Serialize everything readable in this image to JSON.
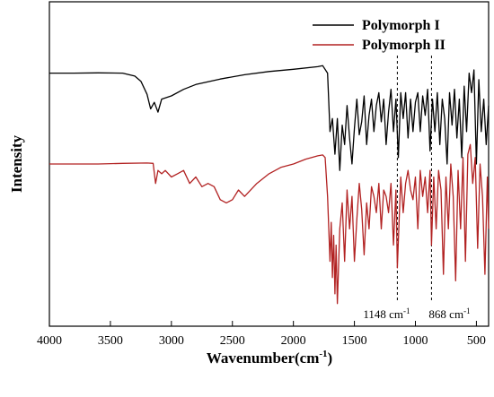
{
  "chart_data": {
    "type": "line",
    "title": "",
    "xlabel": "Wavenumber(cm",
    "xlabel_sup": "-1",
    "xlabel_close": ")",
    "ylabel": "Intensity",
    "xlim": [
      4000,
      400
    ],
    "x_reversed": true,
    "y_ticks_shown": false,
    "grid": false,
    "legend_position": "top-right",
    "x_ticks": [
      4000,
      3500,
      3000,
      2500,
      2000,
      1500,
      1000,
      500
    ],
    "x_tick_labels": [
      "4000",
      "3500",
      "3000",
      "2500",
      "2000",
      "1500",
      "1000",
      "500"
    ],
    "annotations": [
      {
        "x": 1148,
        "label": "1148 cm",
        "sup": "-1",
        "style": "dashed-vertical-line"
      },
      {
        "x": 868,
        "label": "868 cm",
        "sup": "-1",
        "style": "dashed-vertical-line"
      }
    ],
    "series": [
      {
        "name": "Polymorph I",
        "color": "#000000",
        "x": [
          4000,
          3800,
          3600,
          3400,
          3300,
          3250,
          3200,
          3170,
          3140,
          3110,
          3080,
          3000,
          2900,
          2800,
          2600,
          2400,
          2200,
          2000,
          1800,
          1760,
          1720,
          1700,
          1680,
          1660,
          1640,
          1620,
          1600,
          1580,
          1560,
          1540,
          1520,
          1500,
          1480,
          1460,
          1440,
          1420,
          1400,
          1380,
          1360,
          1340,
          1320,
          1300,
          1280,
          1260,
          1240,
          1220,
          1200,
          1180,
          1160,
          1140,
          1120,
          1100,
          1080,
          1060,
          1040,
          1020,
          1000,
          980,
          960,
          940,
          920,
          900,
          880,
          860,
          840,
          820,
          800,
          780,
          760,
          740,
          720,
          700,
          680,
          660,
          640,
          620,
          600,
          580,
          560,
          540,
          520,
          500,
          480,
          460,
          440,
          420,
          400
        ],
        "y": [
          0.78,
          0.78,
          0.781,
          0.78,
          0.771,
          0.755,
          0.715,
          0.67,
          0.69,
          0.66,
          0.7,
          0.71,
          0.73,
          0.745,
          0.762,
          0.775,
          0.785,
          0.792,
          0.8,
          0.803,
          0.78,
          0.6,
          0.64,
          0.53,
          0.64,
          0.48,
          0.62,
          0.56,
          0.68,
          0.58,
          0.5,
          0.61,
          0.7,
          0.59,
          0.63,
          0.71,
          0.56,
          0.65,
          0.7,
          0.6,
          0.68,
          0.72,
          0.63,
          0.7,
          0.56,
          0.66,
          0.73,
          0.6,
          0.7,
          0.52,
          0.72,
          0.64,
          0.72,
          0.58,
          0.7,
          0.6,
          0.69,
          0.72,
          0.6,
          0.71,
          0.65,
          0.73,
          0.54,
          0.7,
          0.6,
          0.72,
          0.56,
          0.7,
          0.64,
          0.5,
          0.72,
          0.62,
          0.73,
          0.58,
          0.7,
          0.52,
          0.74,
          0.6,
          0.78,
          0.72,
          0.79,
          0.5,
          0.76,
          0.6,
          0.7,
          0.56,
          0.68
        ]
      },
      {
        "name": "Polymorph II",
        "color": "#b22222",
        "x": [
          4000,
          3800,
          3600,
          3400,
          3200,
          3150,
          3130,
          3110,
          3080,
          3050,
          3000,
          2950,
          2900,
          2850,
          2800,
          2750,
          2700,
          2650,
          2600,
          2550,
          2500,
          2450,
          2400,
          2300,
          2200,
          2100,
          2000,
          1900,
          1800,
          1760,
          1740,
          1720,
          1700,
          1690,
          1680,
          1670,
          1660,
          1650,
          1640,
          1620,
          1600,
          1580,
          1560,
          1540,
          1520,
          1500,
          1480,
          1460,
          1440,
          1420,
          1400,
          1380,
          1360,
          1340,
          1320,
          1300,
          1280,
          1260,
          1240,
          1220,
          1200,
          1180,
          1160,
          1148,
          1120,
          1100,
          1080,
          1060,
          1040,
          1020,
          1000,
          980,
          960,
          940,
          920,
          900,
          880,
          868,
          850,
          830,
          810,
          790,
          770,
          750,
          730,
          710,
          690,
          670,
          650,
          630,
          610,
          590,
          570,
          550,
          530,
          510,
          490,
          470,
          450,
          430,
          410,
          400
        ],
        "y": [
          0.5,
          0.5,
          0.5,
          0.502,
          0.503,
          0.502,
          0.44,
          0.48,
          0.47,
          0.48,
          0.46,
          0.47,
          0.48,
          0.44,
          0.46,
          0.43,
          0.44,
          0.43,
          0.39,
          0.38,
          0.39,
          0.42,
          0.4,
          0.44,
          0.47,
          0.49,
          0.5,
          0.515,
          0.525,
          0.528,
          0.52,
          0.4,
          0.2,
          0.32,
          0.15,
          0.28,
          0.1,
          0.25,
          0.07,
          0.3,
          0.38,
          0.2,
          0.42,
          0.3,
          0.4,
          0.2,
          0.33,
          0.44,
          0.36,
          0.22,
          0.38,
          0.3,
          0.43,
          0.4,
          0.35,
          0.44,
          0.3,
          0.42,
          0.4,
          0.35,
          0.44,
          0.25,
          0.42,
          0.18,
          0.46,
          0.35,
          0.44,
          0.48,
          0.42,
          0.39,
          0.46,
          0.3,
          0.48,
          0.4,
          0.46,
          0.35,
          0.48,
          0.25,
          0.46,
          0.3,
          0.48,
          0.42,
          0.16,
          0.46,
          0.3,
          0.5,
          0.4,
          0.14,
          0.48,
          0.3,
          0.52,
          0.2,
          0.53,
          0.56,
          0.44,
          0.52,
          0.24,
          0.5,
          0.4,
          0.16,
          0.46,
          0.3
        ]
      }
    ]
  }
}
